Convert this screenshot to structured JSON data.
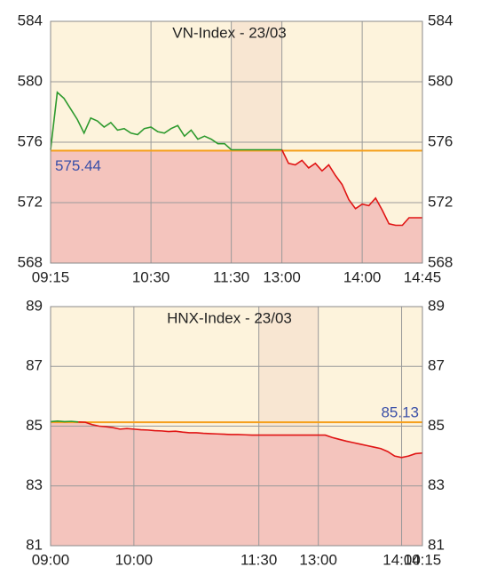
{
  "chart_data": [
    {
      "type": "line",
      "title": "VN-Index - 23/03",
      "x": [
        555,
        560,
        565,
        570,
        575,
        580,
        585,
        590,
        595,
        600,
        605,
        610,
        615,
        620,
        625,
        630,
        635,
        640,
        645,
        650,
        655,
        660,
        665,
        670,
        675,
        680,
        685,
        690,
        780,
        785,
        790,
        795,
        800,
        805,
        810,
        815,
        820,
        825,
        830,
        835,
        840,
        845,
        850,
        855,
        860,
        865,
        870,
        875,
        880,
        885
      ],
      "series": [
        {
          "values": [
            575.5,
            579.3,
            578.9,
            578.2,
            577.5,
            576.6,
            577.6,
            577.4,
            577.0,
            577.3,
            576.8,
            576.9,
            576.6,
            576.5,
            576.9,
            577.0,
            576.7,
            576.6,
            576.9,
            577.1,
            576.4,
            576.8,
            576.2,
            576.4,
            576.2,
            575.9,
            575.9,
            575.5,
            575.5,
            574.6,
            574.5,
            574.8,
            574.3,
            574.6,
            574.1,
            574.5,
            573.8,
            573.2,
            572.2,
            571.6,
            571.9,
            571.8,
            572.3,
            571.5,
            570.6,
            570.5,
            570.5,
            571.0,
            571.0,
            571.0
          ]
        }
      ],
      "reference": 575.44,
      "colors": {
        "above": "#2e9a2e",
        "below": "#e01414",
        "reference": "#f5a01e",
        "fill": "#f4c4bd",
        "background": "#fdf3dc",
        "break": "#f8e6d2",
        "reference_label": "#3a4fa8"
      },
      "break": [
        690,
        780
      ],
      "xlim": [
        555,
        885
      ],
      "xticks": [
        {
          "value": 555,
          "label": "09:15"
        },
        {
          "value": 630,
          "label": "10:30"
        },
        {
          "value": 690,
          "label": "11:30"
        },
        {
          "value": 780,
          "label": "13:00"
        },
        {
          "value": 840,
          "label": "14:00"
        },
        {
          "value": 885,
          "label": "14:45"
        }
      ],
      "ylim": [
        568,
        584
      ],
      "yticks": [
        568,
        572,
        576,
        580,
        584
      ],
      "grid": true
    },
    {
      "type": "line",
      "title": "HNX-Index - 23/03",
      "x": [
        540,
        545,
        550,
        555,
        560,
        565,
        570,
        575,
        580,
        585,
        590,
        595,
        600,
        605,
        610,
        615,
        620,
        625,
        630,
        635,
        640,
        645,
        650,
        655,
        660,
        665,
        670,
        675,
        680,
        685,
        690,
        780,
        785,
        790,
        795,
        800,
        805,
        810,
        815,
        820,
        825,
        830,
        835,
        840,
        845,
        850,
        855
      ],
      "series": [
        {
          "values": [
            85.15,
            85.17,
            85.15,
            85.16,
            85.14,
            85.13,
            85.05,
            85.0,
            84.98,
            84.95,
            84.9,
            84.92,
            84.9,
            84.88,
            84.87,
            84.85,
            84.84,
            84.82,
            84.83,
            84.8,
            84.78,
            84.78,
            84.76,
            84.75,
            84.74,
            84.73,
            84.72,
            84.72,
            84.71,
            84.7,
            84.7,
            84.7,
            84.7,
            84.62,
            84.56,
            84.5,
            84.45,
            84.4,
            84.35,
            84.3,
            84.25,
            84.15,
            84.0,
            83.95,
            84.0,
            84.08,
            84.1
          ]
        }
      ],
      "reference": 85.13,
      "colors": {
        "above": "#2e9a2e",
        "below": "#e01414",
        "reference": "#f5a01e",
        "fill": "#f4c4bd",
        "background": "#fdf3dc",
        "break": "#f8e6d2",
        "reference_label": "#3a4fa8"
      },
      "break": [
        690,
        780
      ],
      "xlim": [
        540,
        855
      ],
      "xticks": [
        {
          "value": 540,
          "label": "09:00"
        },
        {
          "value": 600,
          "label": "10:00"
        },
        {
          "value": 690,
          "label": "11:30"
        },
        {
          "value": 780,
          "label": "13:00"
        },
        {
          "value": 840,
          "label": "14:00"
        },
        {
          "value": 855,
          "label": "14:15"
        }
      ],
      "ylim": [
        81,
        89
      ],
      "yticks": [
        81,
        83,
        85,
        87,
        89
      ],
      "grid": true
    }
  ]
}
